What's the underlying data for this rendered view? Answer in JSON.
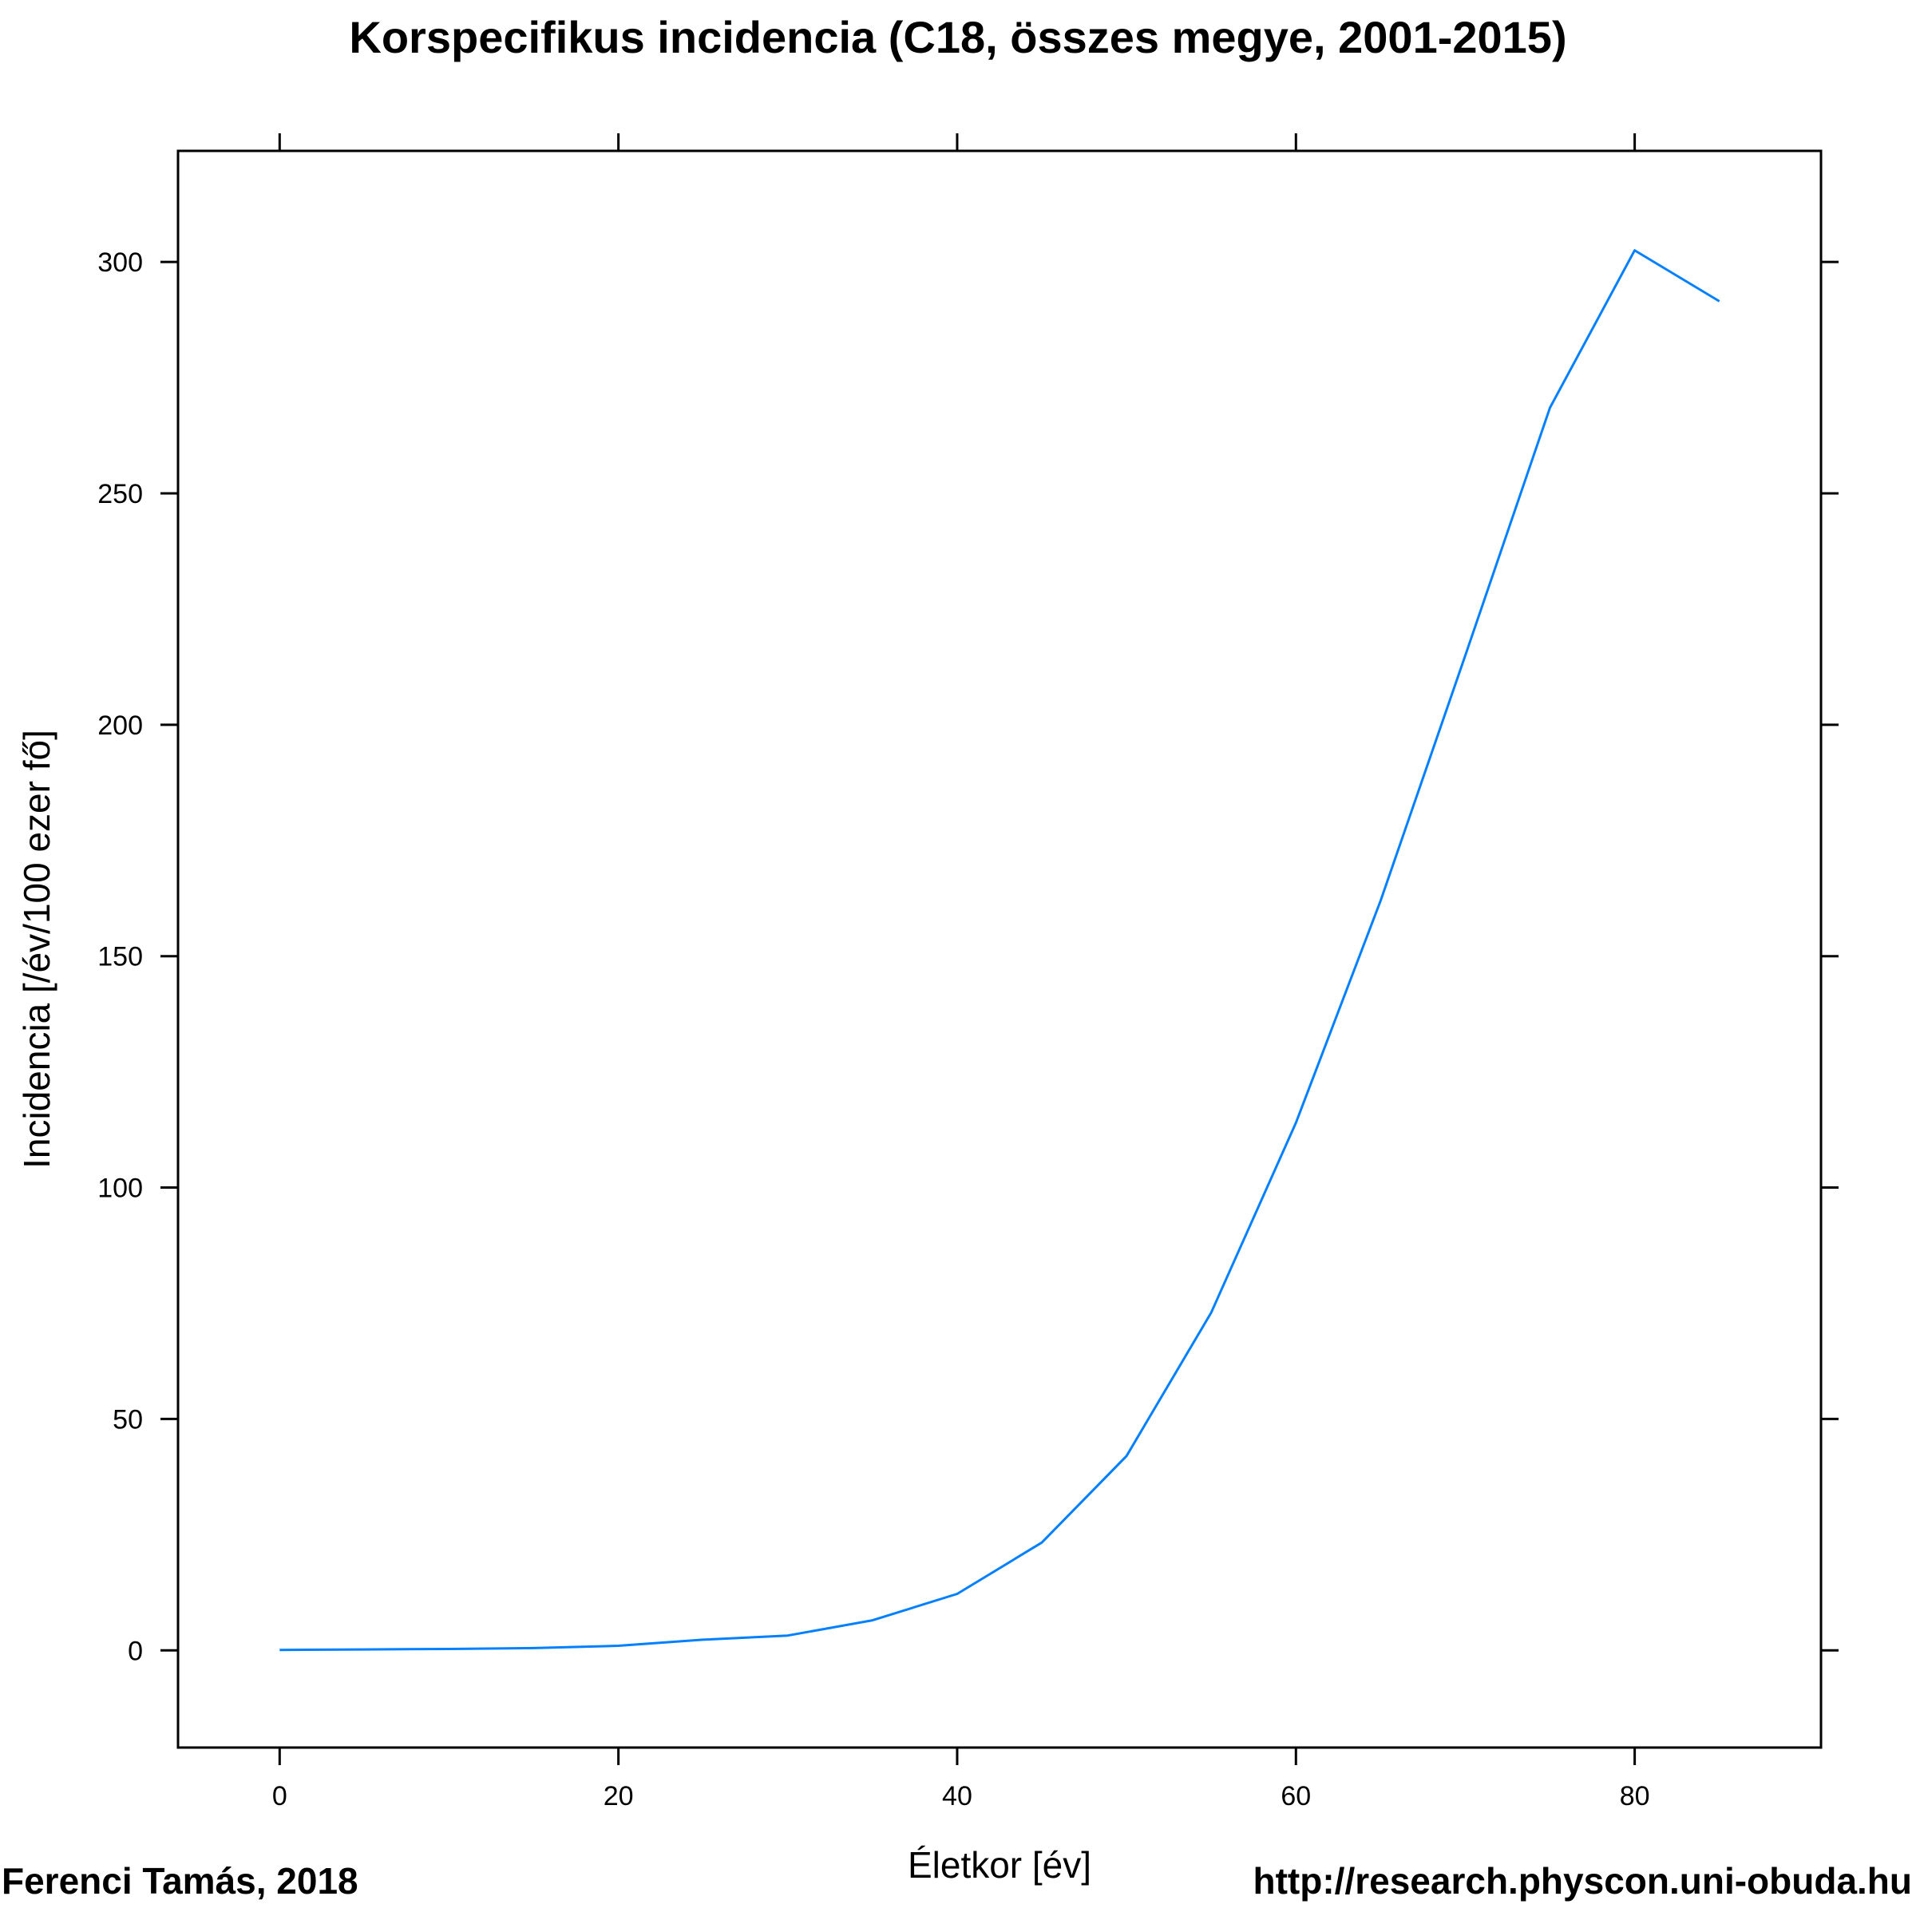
{
  "chart_data": {
    "type": "line",
    "title": "Korspecifikus incidencia (C18, összes megye, 2001-2015)",
    "xlabel": "Életkor [év]",
    "ylabel": "Incidencia [/év/100 ezer fő]",
    "xlim": [
      -6,
      91
    ],
    "ylim": [
      -21,
      324
    ],
    "x_ticks": [
      0,
      20,
      40,
      60,
      80
    ],
    "y_ticks": [
      0,
      50,
      100,
      150,
      200,
      250,
      300
    ],
    "x_tick_labels": [
      "0",
      "20",
      "40",
      "60",
      "80"
    ],
    "y_tick_labels": [
      "0",
      "50",
      "100",
      "150",
      "200",
      "250",
      "300"
    ],
    "grid": false,
    "series": [
      {
        "name": "Incidencia",
        "color": "#0080ff",
        "x": [
          0,
          5,
          10,
          15,
          20,
          25,
          30,
          35,
          40,
          45,
          50,
          55,
          60,
          65,
          70,
          75,
          80,
          85
        ],
        "values": [
          0.1,
          0.2,
          0.3,
          0.5,
          1.0,
          2.3,
          3.2,
          6.5,
          12.2,
          23.3,
          42.0,
          73.0,
          114.0,
          162.0,
          215.0,
          268.5,
          302.5,
          291.5
        ]
      }
    ]
  },
  "footer": {
    "author": "Ferenci Tamás, 2018",
    "url": "http://research.physcon.uni-obuda.hu"
  }
}
